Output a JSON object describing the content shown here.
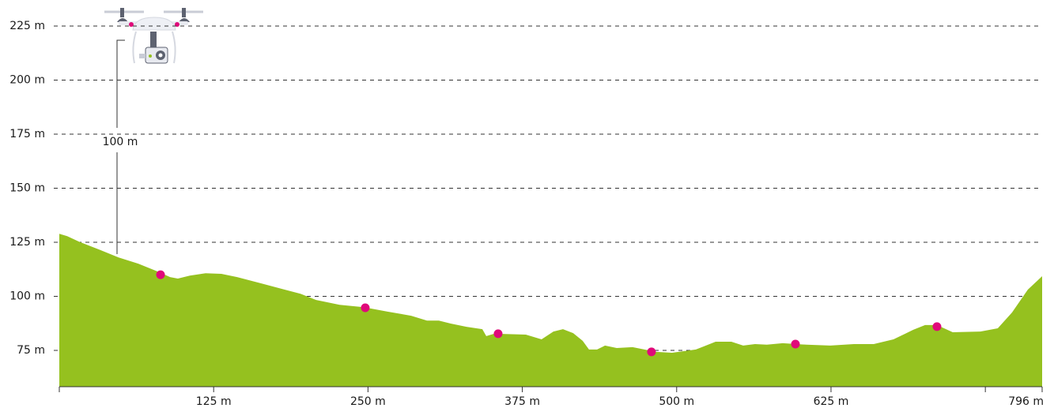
{
  "chart_data": {
    "type": "area",
    "color": "#95c11f",
    "grid": true,
    "xlim": [
      0,
      796
    ],
    "ylim": [
      58.2,
      225
    ],
    "xticks": [
      {
        "value": 0,
        "label": null
      },
      {
        "value": 125,
        "label": "125 m"
      },
      {
        "value": 250,
        "label": "250 m"
      },
      {
        "value": 375,
        "label": "375 m"
      },
      {
        "value": 500,
        "label": "500 m"
      },
      {
        "value": 625,
        "label": "625 m"
      },
      {
        "value": 750,
        "label": null
      },
      {
        "value": 796,
        "label": "796 m"
      }
    ],
    "yticks": [
      {
        "value": 75,
        "label": "75 m"
      },
      {
        "value": 100,
        "label": "100 m"
      },
      {
        "value": 125,
        "label": "125 m"
      },
      {
        "value": 150,
        "label": "150 m"
      },
      {
        "value": 175,
        "label": "175 m"
      },
      {
        "value": 200,
        "label": "200 m"
      },
      {
        "value": 225,
        "label": "225 m"
      }
    ],
    "x": [
      0,
      6.4,
      16,
      28.8,
      38.4,
      48,
      64,
      80,
      89.7,
      96,
      105.7,
      118.5,
      131.3,
      144,
      163.3,
      182.5,
      195.3,
      208,
      227,
      246.5,
      265.8,
      285,
      297.8,
      307.4,
      317,
      329.8,
      342.6,
      345.8,
      352.2,
      377.8,
      390.6,
      400.2,
      407.9,
      416.2,
      423.9,
      429,
      435.5,
      441.9,
      451.5,
      464.3,
      483.5,
      496.3,
      515.5,
      531.5,
      544.3,
      553.9,
      563.5,
      573.1,
      585.9,
      605.2,
      624.4,
      643.6,
      659.6,
      675.6,
      691.6,
      701.2,
      710.8,
      723.6,
      746,
      760.1,
      771.6,
      784.4,
      796
    ],
    "values": [
      128.9,
      127.8,
      125.3,
      122.4,
      120.2,
      118,
      115.1,
      111.4,
      108.9,
      108.2,
      109.6,
      110.7,
      110.4,
      108.9,
      106,
      103.1,
      101.2,
      98.3,
      96.1,
      95,
      92.9,
      91,
      88.8,
      88.8,
      87.4,
      85.9,
      84.8,
      81.6,
      82.7,
      82.3,
      80.1,
      83.7,
      84.8,
      83,
      79.4,
      75.4,
      75.4,
      77.2,
      76.1,
      76.5,
      74.3,
      73.9,
      75.4,
      79,
      79,
      77.2,
      77.9,
      77.6,
      78.3,
      77.6,
      77.2,
      77.9,
      77.9,
      80.1,
      84.5,
      86.7,
      86.7,
      83.4,
      83.7,
      85.2,
      92.5,
      103.1,
      109.3
    ],
    "markers": {
      "color": "#e0097a",
      "x": [
        82,
        247.8,
        355.4,
        479.6,
        596.2,
        710.8
      ],
      "y": [
        110,
        94.7,
        82.7,
        74.3,
        77.9,
        86
      ]
    },
    "annotation": "100 m"
  }
}
